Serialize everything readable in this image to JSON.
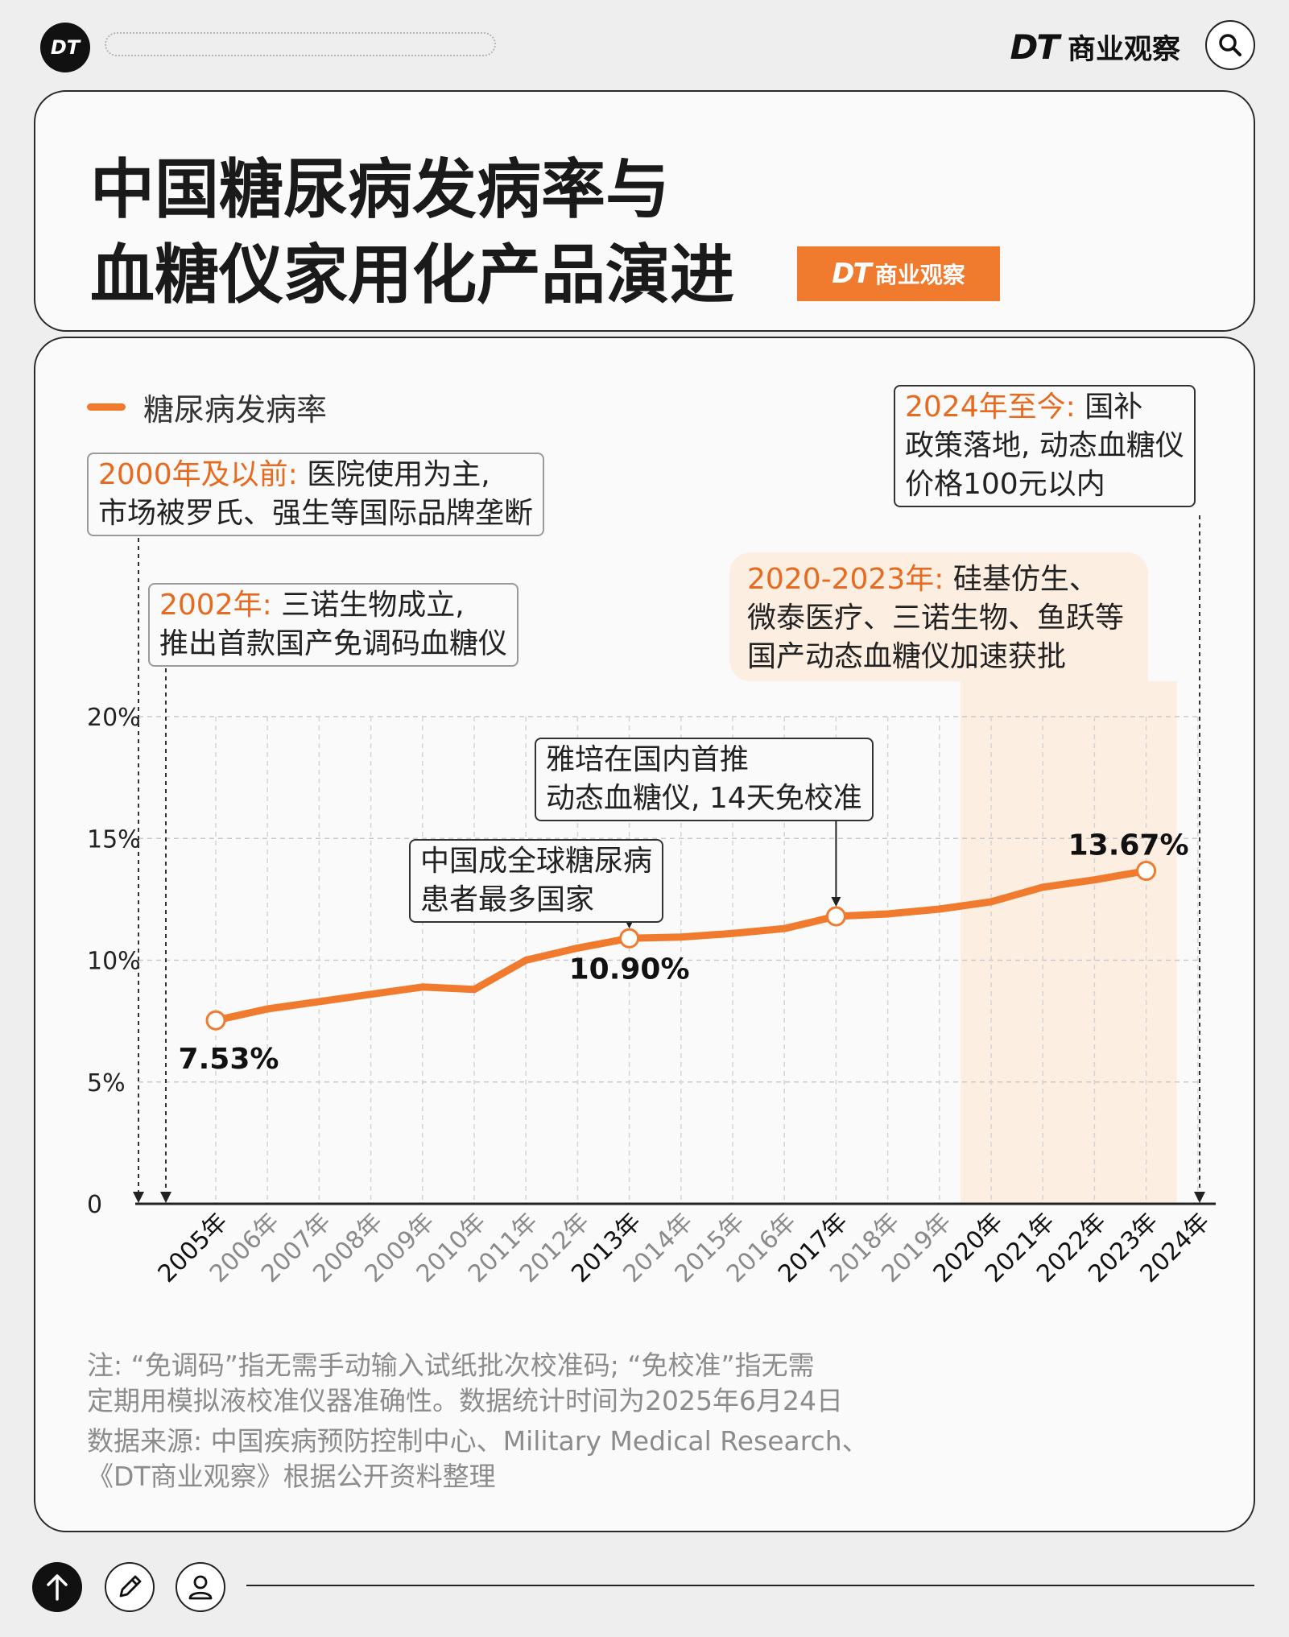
{
  "header": {
    "logo_text": "DT",
    "brand_dt": "DT",
    "brand_name": "商业观察",
    "search_icon": "search-icon"
  },
  "title": {
    "line1": "中国糖尿病发病率与",
    "line2": "血糖仪家用化产品演进",
    "badge_dt": "DT",
    "badge_name": "商业观察"
  },
  "annotations": {
    "a2000_year": "2000年及以前:",
    "a2000_l1": "医院使用为主,",
    "a2000_l2": "市场被罗氏、强生等国际品牌垄断",
    "a2002_year": "2002年:",
    "a2002_l1": "三诺生物成立,",
    "a2002_l2": "推出首款国产免调码血糖仪",
    "a2024_year": "2024年至今:",
    "a2024_l1": "国补",
    "a2024_l2": "政策落地, 动态血糖仪",
    "a2024_l3": "价格100元以内",
    "a2020_year": "2020-2023年:",
    "a2020_l1": "硅基仿生、",
    "a2020_l2": "微泰医疗、三诺生物、鱼跃等",
    "a2020_l3": "国产动态血糖仪加速获批",
    "a2013_l1": "中国成全球糖尿病",
    "a2013_l2": "患者最多国家",
    "a2017_l1": "雅培在国内首推",
    "a2017_l2": "动态血糖仪, 14天免校准"
  },
  "chart_data": {
    "type": "line",
    "title": "中国糖尿病发病率与血糖仪家用化产品演进",
    "xlabel": "",
    "ylabel": "",
    "ylim": [
      0,
      20
    ],
    "y_ticks": [
      "0",
      "5%",
      "10%",
      "15%",
      "20%"
    ],
    "y_tick_values": [
      0,
      5,
      10,
      15,
      20
    ],
    "legend_position": "top-left",
    "grid": true,
    "categories": [
      "2005年",
      "2006年",
      "2007年",
      "2008年",
      "2009年",
      "2010年",
      "2011年",
      "2012年",
      "2013年",
      "2014年",
      "2015年",
      "2016年",
      "2017年",
      "2018年",
      "2019年",
      "2020年",
      "2021年",
      "2022年",
      "2023年",
      "2024年"
    ],
    "highlighted_categories": [
      "2005年",
      "2013年",
      "2017年",
      "2020年",
      "2021年",
      "2022年",
      "2023年",
      "2024年"
    ],
    "highlight_band": [
      "2020年",
      "2023年"
    ],
    "series": [
      {
        "name": "糖尿病发病率",
        "color": "#f07a2d",
        "values": [
          7.53,
          8.0,
          8.3,
          8.6,
          8.9,
          8.8,
          10.0,
          10.5,
          10.9,
          10.95,
          11.1,
          11.3,
          11.8,
          11.9,
          12.1,
          12.4,
          13.0,
          13.3,
          13.67,
          null
        ]
      }
    ],
    "data_labels": [
      {
        "category": "2005年",
        "text": "7.53%"
      },
      {
        "category": "2013年",
        "text": "10.90%"
      },
      {
        "category": "2023年",
        "text": "13.67%"
      }
    ]
  },
  "notes": {
    "note_l1": "注: “免调码”指无需手动输入试纸批次校准码; “免校准”指无需",
    "note_l2": "定期用模拟液校准仪器准确性。数据统计时间为2025年6月24日",
    "source_l1": "数据来源: 中国疾病预防控制中心、Military Medical Research、",
    "source_l2": "《DT商业观察》根据公开资料整理"
  },
  "colors": {
    "accent": "#f07a2d",
    "highlight_band": "#fdeee2",
    "panel": "#fafafa",
    "text": "#1a1a1a",
    "muted": "#8c8c8c"
  }
}
